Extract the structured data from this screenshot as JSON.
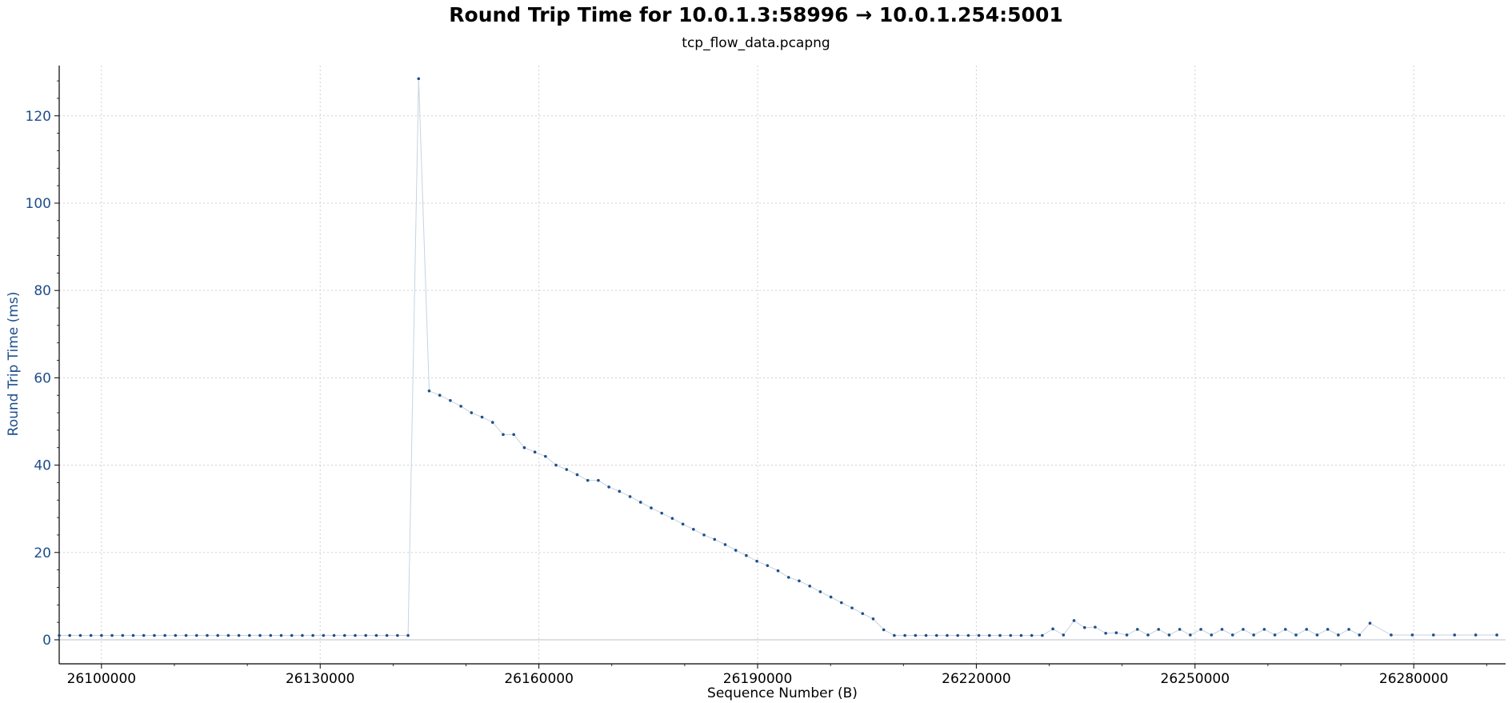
{
  "chart_data": {
    "type": "line",
    "title": "Round Trip Time for 10.0.1.3:58996 → 10.0.1.254:5001",
    "subtitle": "tcp_flow_data.pcapng",
    "xlabel": "Sequence Number (B)",
    "ylabel": "Round Trip Time (ms)",
    "xlim": [
      26094200,
      26292600
    ],
    "ylim": [
      -5.5,
      131.5
    ],
    "xticks": [
      26100000,
      26130000,
      26160000,
      26190000,
      26220000,
      26250000,
      26280000
    ],
    "yticks": [
      0,
      20,
      40,
      60,
      80,
      100,
      120
    ],
    "grid": true,
    "colors": {
      "series": "#1f4e8c",
      "line": "#c5d3e0",
      "ylabel": "#1f4e8c",
      "grid": "#d0d0d0"
    },
    "series": [
      {
        "x": [
          26094200,
          26095650,
          26097100,
          26098550,
          26100000,
          26101450,
          26102900,
          26104350,
          26105800,
          26107250,
          26108700,
          26110150,
          26111600,
          26113050,
          26114500,
          26115950,
          26117400,
          26118850,
          26120300,
          26121750,
          26123200,
          26124650,
          26126100,
          26127550,
          26129000,
          26130450,
          26131900,
          26133350,
          26134800,
          26136250,
          26137700,
          26139150,
          26140600,
          26142050,
          26143500,
          26144950,
          26146400,
          26147850,
          26149300,
          26150750,
          26152200,
          26153650,
          26155100,
          26156550,
          26158000,
          26159450,
          26160900,
          26162350,
          26163800,
          26165250,
          26166700,
          26168150,
          26169600,
          26171050,
          26172500,
          26173950,
          26175400,
          26176850,
          26178300,
          26179750,
          26181200,
          26182650,
          26184100,
          26185550,
          26187000,
          26188450,
          26189900,
          26191350,
          26192800,
          26194250,
          26195700,
          26197150,
          26198600,
          26200050,
          26201500,
          26202950,
          26204400,
          26205850,
          26207300,
          26208750,
          26210200,
          26211650,
          26213100,
          26214550,
          26216000,
          26217450,
          26218900,
          26220350,
          26221800,
          26223250,
          26224700,
          26226150,
          26227600,
          26229050,
          26230500,
          26231950,
          26233400,
          26234850,
          26236300,
          26237750,
          26239200,
          26240650,
          26242100,
          26243550,
          26245000,
          26246450,
          26247900,
          26249350,
          26250800,
          26252250,
          26253700,
          26255150,
          26256600,
          26258050,
          26259500,
          26260950,
          26262400,
          26263850,
          26265300,
          26266750,
          26268200,
          26269650,
          26271100,
          26272550,
          26274000,
          26276900,
          26279800,
          26282700,
          26285600,
          26288500,
          26291400
        ],
        "y": [
          1,
          1,
          1,
          1,
          1,
          1,
          1,
          1,
          1,
          1,
          1,
          1,
          1,
          1,
          1,
          1,
          1,
          1,
          1,
          1,
          1,
          1,
          1,
          1,
          1,
          1,
          1,
          1,
          1,
          1,
          1,
          1,
          1,
          1,
          128.5,
          57,
          56,
          54.8,
          53.5,
          52,
          51,
          49.8,
          47,
          47,
          44,
          43,
          42,
          40,
          39,
          37.8,
          36.5,
          36.5,
          35,
          34,
          32.8,
          31.5,
          30.2,
          29,
          27.8,
          26.5,
          25.3,
          24,
          23,
          21.8,
          20.5,
          19.3,
          18,
          17,
          15.8,
          14.3,
          13.5,
          12.3,
          11,
          9.8,
          8.5,
          7.3,
          6,
          4.8,
          2.3,
          1,
          1,
          1,
          1,
          1,
          1,
          1,
          1,
          1,
          1,
          1,
          1,
          1,
          1,
          1,
          2.5,
          1.1,
          4.4,
          2.8,
          2.9,
          1.5,
          1.6,
          1.1,
          2.4,
          1.1,
          2.4,
          1.1,
          2.4,
          1.1,
          2.4,
          1.1,
          2.4,
          1.1,
          2.4,
          1.1,
          2.4,
          1.1,
          2.4,
          1.1,
          2.4,
          1.1,
          2.4,
          1.1,
          2.4,
          1.1,
          3.8,
          1.1,
          1.1,
          1.1,
          1.1,
          1.1,
          1.1
        ]
      }
    ]
  }
}
